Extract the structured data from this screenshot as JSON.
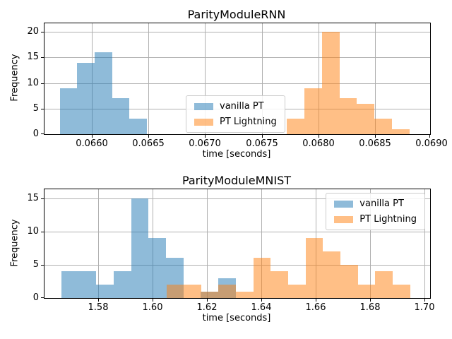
{
  "figure": {
    "background": "#ffffff",
    "grid_color": "#b0b0b0",
    "spine_color": "#000000",
    "legend_border_color": "#cccccc",
    "blue_fill_flattened": "#8fbbd9",
    "orange_fill_flattened": "#ffbf86",
    "overlap_fill_flattened": "#c79d73"
  },
  "chart_data": [
    {
      "type": "histogram",
      "title": "ParityModuleRNN",
      "xlabel": "time [seconds]",
      "ylabel": "Frequency",
      "grid": true,
      "legend_position": "center",
      "xlim": [
        0.065585,
        0.068985
      ],
      "ylim": [
        0,
        21.7
      ],
      "xtick_values": [
        0.066,
        0.0665,
        0.067,
        0.0675,
        0.068,
        0.0685,
        0.069
      ],
      "xtick_labels": [
        "0.0660",
        "0.0665",
        "0.0670",
        "0.0675",
        "0.0680",
        "0.0685",
        "0.0690"
      ],
      "ytick_values": [
        0,
        5,
        10,
        15,
        20
      ],
      "ytick_labels": [
        "0",
        "5",
        "10",
        "15",
        "20"
      ],
      "series": [
        {
          "name": "vanilla PT",
          "color": "#1f77b4",
          "alpha": 0.5,
          "bin_start": 0.06572,
          "bin_width": 0.0001535,
          "counts": [
            9,
            14,
            16,
            7,
            3
          ]
        },
        {
          "name": "PT Lightning",
          "color": "#ff7f0e",
          "alpha": 0.5,
          "bin_start": 0.06772,
          "bin_width": 0.000155,
          "counts": [
            3,
            9,
            20,
            7,
            6,
            3,
            1
          ]
        }
      ]
    },
    {
      "type": "histogram",
      "title": "ParityModuleMNIST",
      "xlabel": "time [seconds]",
      "ylabel": "Frequency",
      "grid": true,
      "legend_position": "upper right",
      "xlim": [
        1.5602,
        1.702
      ],
      "ylim": [
        0,
        16.34
      ],
      "xtick_values": [
        1.58,
        1.6,
        1.62,
        1.64,
        1.66,
        1.68,
        1.7
      ],
      "xtick_labels": [
        "1.58",
        "1.60",
        "1.62",
        "1.64",
        "1.66",
        "1.68",
        "1.70"
      ],
      "ytick_values": [
        0,
        5,
        10,
        15
      ],
      "ytick_labels": [
        "0",
        "5",
        "10",
        "15"
      ],
      "series": [
        {
          "name": "vanilla PT",
          "color": "#1f77b4",
          "alpha": 0.5,
          "bin_start": 1.5664,
          "bin_width": 0.00641,
          "counts": [
            4,
            4,
            2,
            4,
            15,
            9,
            6,
            0,
            1,
            3
          ]
        },
        {
          "name": "PT Lightning",
          "color": "#ff7f0e",
          "alpha": 0.5,
          "bin_start": 1.605,
          "bin_width": 0.0064,
          "counts": [
            2,
            2,
            1,
            2,
            1,
            6,
            4,
            2,
            9,
            7,
            5,
            2,
            4,
            2
          ]
        }
      ]
    }
  ]
}
